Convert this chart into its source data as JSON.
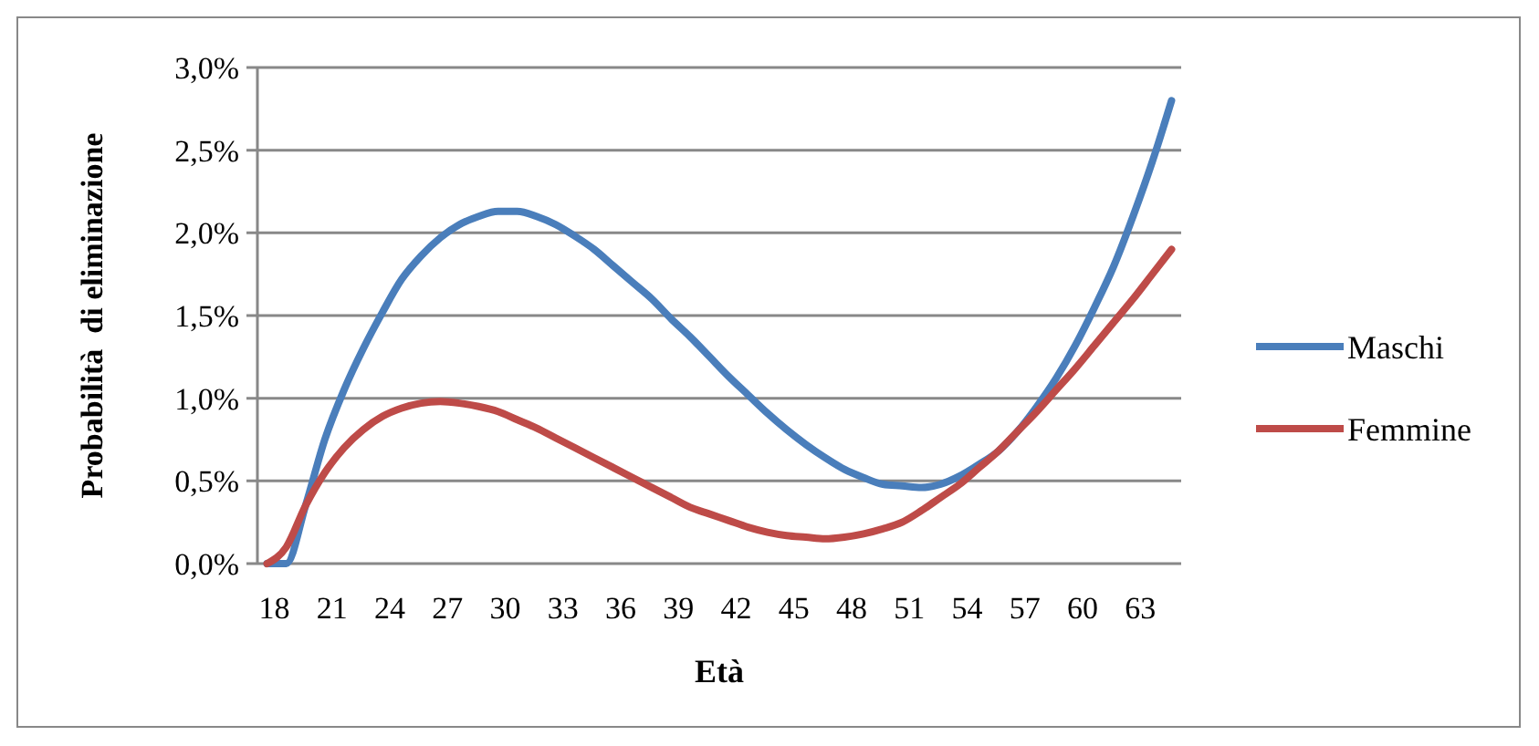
{
  "chart_data": {
    "type": "line",
    "xlabel": "Età",
    "ylabel": "Probabilità  di eliminazione",
    "categories": [
      "18",
      null,
      null,
      "21",
      null,
      null,
      "24",
      null,
      null,
      "27",
      null,
      null,
      "30",
      null,
      null,
      "33",
      null,
      null,
      "36",
      null,
      null,
      "39",
      null,
      null,
      "42",
      null,
      null,
      "45",
      null,
      null,
      "48",
      null,
      null,
      "51",
      null,
      null,
      "54",
      null,
      null,
      "57",
      null,
      null,
      "60",
      null,
      null,
      "63",
      null,
      null
    ],
    "series": [
      {
        "name": "Maschi",
        "color": "#4a7ebb",
        "values": [
          0,
          0,
          0.35,
          0.75,
          1.05,
          1.3,
          1.52,
          1.72,
          1.86,
          1.97,
          2.05,
          2.1,
          2.13,
          2.13,
          2.1,
          2.05,
          1.98,
          1.9,
          1.8,
          1.7,
          1.6,
          1.48,
          1.37,
          1.25,
          1.13,
          1.02,
          0.91,
          0.81,
          0.72,
          0.64,
          0.57,
          0.52,
          0.48,
          0.47,
          0.46,
          0.48,
          0.53,
          0.6,
          0.68,
          0.8,
          0.95,
          1.12,
          1.32,
          1.55,
          1.8,
          2.1,
          2.43,
          2.8
        ]
      },
      {
        "name": "Femmine",
        "color": "#be4b48",
        "values": [
          0,
          0.1,
          0.35,
          0.55,
          0.7,
          0.81,
          0.89,
          0.94,
          0.97,
          0.98,
          0.97,
          0.95,
          0.92,
          0.87,
          0.82,
          0.76,
          0.7,
          0.64,
          0.58,
          0.52,
          0.46,
          0.4,
          0.34,
          0.3,
          0.26,
          0.22,
          0.19,
          0.17,
          0.16,
          0.15,
          0.16,
          0.18,
          0.21,
          0.25,
          0.32,
          0.4,
          0.48,
          0.58,
          0.68,
          0.8,
          0.92,
          1.05,
          1.18,
          1.32,
          1.46,
          1.6,
          1.75,
          1.9
        ]
      }
    ],
    "ylim": [
      0,
      3
    ],
    "yticks": [
      {
        "value": 0,
        "label": "0,0%"
      },
      {
        "value": 0.5,
        "label": "0,5%"
      },
      {
        "value": 1,
        "label": "1,0%"
      },
      {
        "value": 1.5,
        "label": "1,5%"
      },
      {
        "value": 2,
        "label": "2,0%"
      },
      {
        "value": 2.5,
        "label": "2,5%"
      },
      {
        "value": 3,
        "label": "3,0%"
      }
    ],
    "grid": "y",
    "legend": "right",
    "marker": "none",
    "line_style": "solid"
  }
}
